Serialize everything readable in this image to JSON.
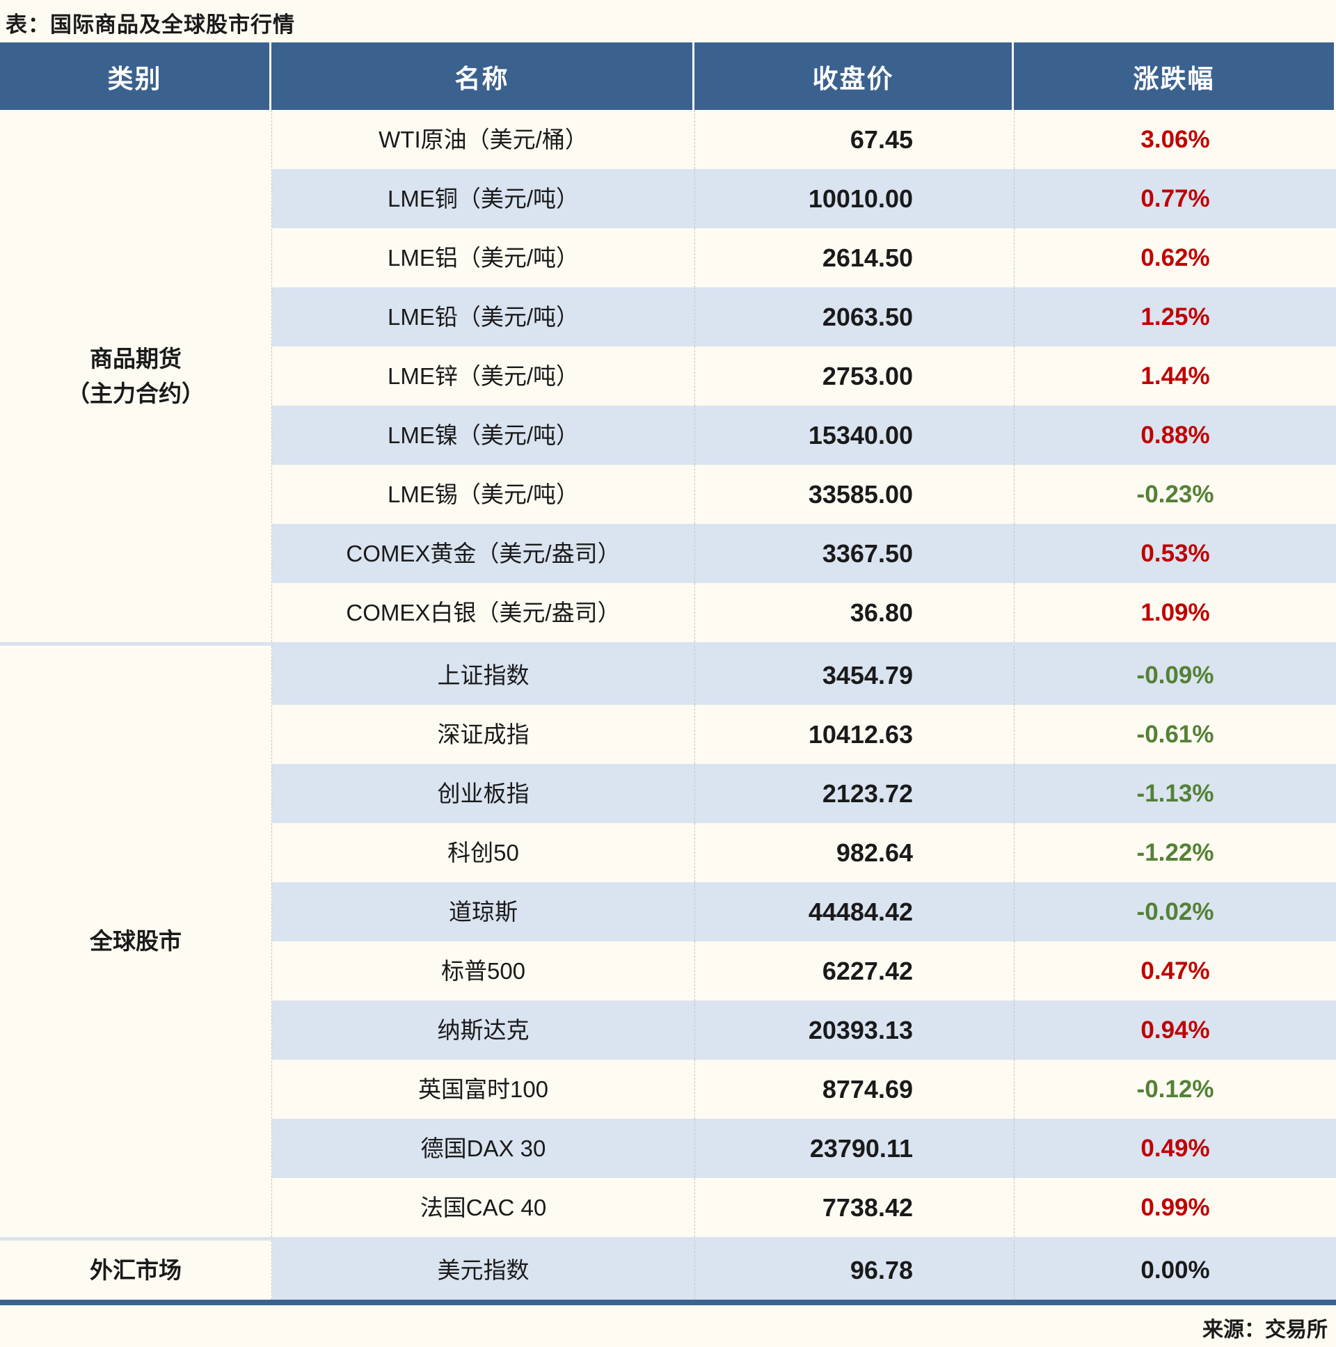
{
  "page_title": "表：国际商品及全球股市行情",
  "source_note": "来源：交易所",
  "colors": {
    "header_blue": "#3b618e",
    "row_stripe_blue": "#dae3f0",
    "row_base_cream": "#fdfbf2",
    "up_red": "#c00000",
    "down_green": "#538135",
    "flat_black": "#1a1a1a"
  },
  "chart_data": {
    "type": "table",
    "title": "国际商品及全球股市行情",
    "columns": [
      "类别",
      "名称",
      "收盘价",
      "涨跌幅"
    ],
    "sections": [
      {
        "category": "商品期货（主力合约）",
        "category_lines": [
          "商品期货",
          "（主力合约）"
        ],
        "rows": [
          {
            "name": "WTI原油（美元/桶）",
            "close": "67.45",
            "change": "3.06%",
            "direction": "up"
          },
          {
            "name": "LME铜（美元/吨）",
            "close": "10010.00",
            "change": "0.77%",
            "direction": "up"
          },
          {
            "name": "LME铝（美元/吨）",
            "close": "2614.50",
            "change": "0.62%",
            "direction": "up"
          },
          {
            "name": "LME铅（美元/吨）",
            "close": "2063.50",
            "change": "1.25%",
            "direction": "up"
          },
          {
            "name": "LME锌（美元/吨）",
            "close": "2753.00",
            "change": "1.44%",
            "direction": "up"
          },
          {
            "name": "LME镍（美元/吨）",
            "close": "15340.00",
            "change": "0.88%",
            "direction": "up"
          },
          {
            "name": "LME锡（美元/吨）",
            "close": "33585.00",
            "change": "-0.23%",
            "direction": "down"
          },
          {
            "name": "COMEX黄金（美元/盎司）",
            "close": "3367.50",
            "change": "0.53%",
            "direction": "up"
          },
          {
            "name": "COMEX白银（美元/盎司）",
            "close": "36.80",
            "change": "1.09%",
            "direction": "up"
          }
        ]
      },
      {
        "category": "全球股市",
        "category_lines": [
          "全球股市"
        ],
        "rows": [
          {
            "name": "上证指数",
            "close": "3454.79",
            "change": "-0.09%",
            "direction": "down"
          },
          {
            "name": "深证成指",
            "close": "10412.63",
            "change": "-0.61%",
            "direction": "down"
          },
          {
            "name": "创业板指",
            "close": "2123.72",
            "change": "-1.13%",
            "direction": "down"
          },
          {
            "name": "科创50",
            "close": "982.64",
            "change": "-1.22%",
            "direction": "down"
          },
          {
            "name": "道琼斯",
            "close": "44484.42",
            "change": "-0.02%",
            "direction": "down"
          },
          {
            "name": "标普500",
            "close": "6227.42",
            "change": "0.47%",
            "direction": "up"
          },
          {
            "name": "纳斯达克",
            "close": "20393.13",
            "change": "0.94%",
            "direction": "up"
          },
          {
            "name": "英国富时100",
            "close": "8774.69",
            "change": "-0.12%",
            "direction": "down"
          },
          {
            "name": "德国DAX 30",
            "close": "23790.11",
            "change": "0.49%",
            "direction": "up"
          },
          {
            "name": "法国CAC 40",
            "close": "7738.42",
            "change": "0.99%",
            "direction": "up"
          }
        ]
      },
      {
        "category": "外汇市场",
        "category_lines": [
          "外汇市场"
        ],
        "rows": [
          {
            "name": "美元指数",
            "close": "96.78",
            "change": "0.00%",
            "direction": "flat"
          }
        ]
      }
    ]
  }
}
